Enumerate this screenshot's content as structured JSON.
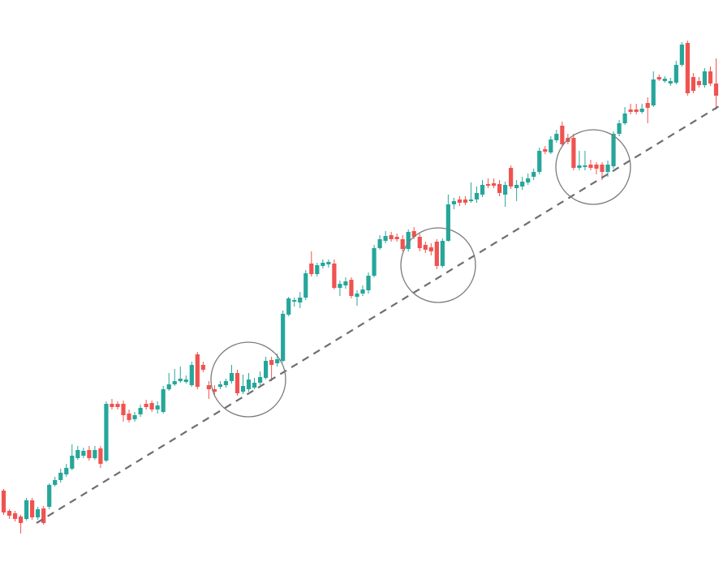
{
  "chart_data": {
    "type": "candlestick",
    "up_color": "#26a69a",
    "down_color": "#ef5350",
    "ylim": [
      7,
      700
    ],
    "open": [
      95,
      70,
      67,
      63,
      60,
      83,
      62,
      73,
      75,
      102,
      108,
      115,
      122,
      135,
      138,
      145,
      135,
      147,
      132,
      202,
      202,
      202,
      190,
      183,
      189,
      202,
      203,
      195,
      192,
      220,
      226,
      230,
      229,
      225,
      263,
      250,
      225,
      220,
      223,
      225,
      230,
      240,
      217,
      220,
      222,
      228,
      234,
      256,
      252,
      255,
      312,
      328,
      327,
      333,
      375,
      362,
      372,
      374,
      375,
      345,
      348,
      355,
      334,
      338,
      342,
      360,
      394,
      403,
      410,
      408,
      405,
      393,
      415,
      408,
      398,
      395,
      402,
      372,
      403,
      448,
      454,
      454,
      452,
      454,
      460,
      473,
      474,
      473,
      460,
      493,
      468,
      470,
      475,
      482,
      488,
      516,
      512,
      527,
      545,
      530,
      530,
      493,
      494,
      497,
      497,
      497,
      488,
      495,
      535,
      548,
      565,
      565,
      562,
      573,
      570,
      605,
      600,
      597,
      598,
      620,
      647,
      605,
      600,
      595,
      612,
      597
    ],
    "high": [
      97,
      72,
      70,
      65,
      86,
      86,
      75,
      76,
      104,
      112,
      122,
      128,
      152,
      150,
      148,
      150,
      150,
      150,
      205,
      208,
      205,
      206,
      195,
      192,
      201,
      207,
      206,
      205,
      224,
      240,
      245,
      248,
      237,
      254,
      266,
      254,
      230,
      225,
      230,
      233,
      250,
      244,
      238,
      240,
      234,
      242,
      260,
      260,
      264,
      317,
      334,
      333,
      340,
      367,
      390,
      376,
      380,
      380,
      380,
      354,
      358,
      358,
      342,
      348,
      364,
      398,
      410,
      415,
      414,
      412,
      410,
      417,
      420,
      412,
      402,
      400,
      405,
      406,
      460,
      456,
      458,
      458,
      475,
      470,
      478,
      480,
      480,
      478,
      476,
      496,
      478,
      482,
      486,
      492,
      518,
      520,
      532,
      540,
      550,
      535,
      535,
      514,
      514,
      503,
      500,
      500,
      502,
      538,
      552,
      568,
      572,
      572,
      572,
      580,
      612,
      608,
      606,
      604,
      625,
      648,
      650,
      610,
      605,
      616,
      618,
      628
    ],
    "low": [
      65,
      60,
      57,
      42,
      58,
      59,
      59,
      53,
      72,
      100,
      105,
      112,
      120,
      133,
      135,
      132,
      133,
      123,
      130,
      195,
      195,
      180,
      179,
      180,
      186,
      195,
      192,
      190,
      190,
      218,
      224,
      228,
      227,
      223,
      220,
      241,
      208,
      213,
      220,
      222,
      227,
      212,
      214,
      217,
      220,
      225,
      232,
      230,
      248,
      253,
      310,
      322,
      320,
      330,
      359,
      359,
      369,
      370,
      343,
      335,
      344,
      332,
      323,
      335,
      338,
      358,
      392,
      400,
      402,
      402,
      390,
      390,
      405,
      390,
      388,
      385,
      368,
      370,
      402,
      442,
      446,
      447,
      450,
      450,
      457,
      468,
      468,
      458,
      445,
      467,
      452,
      466,
      472,
      478,
      485,
      510,
      510,
      524,
      519,
      522,
      490,
      490,
      490,
      490,
      485,
      478,
      482,
      492,
      532,
      546,
      559,
      559,
      560,
      548,
      568,
      600,
      598,
      594,
      596,
      618,
      582,
      585,
      592,
      592,
      594,
      565
    ],
    "close": [
      68,
      64,
      60,
      55,
      83,
      62,
      72,
      55,
      102,
      108,
      117,
      123,
      138,
      145,
      144,
      135,
      145,
      128,
      202,
      198,
      198,
      188,
      182,
      188,
      197,
      198,
      195,
      200,
      220,
      226,
      230,
      233,
      232,
      250,
      223,
      244,
      220,
      217,
      226,
      230,
      240,
      215,
      224,
      232,
      228,
      235,
      255,
      250,
      257,
      313,
      332,
      330,
      333,
      363,
      362,
      373,
      376,
      377,
      345,
      350,
      353,
      335,
      338,
      343,
      360,
      394,
      405,
      409,
      405,
      405,
      393,
      414,
      408,
      394,
      392,
      390,
      372,
      403,
      448,
      452,
      450,
      450,
      454,
      462,
      472,
      471,
      471,
      462,
      472,
      470,
      472,
      476,
      480,
      488,
      514,
      513,
      528,
      535,
      522,
      525,
      493,
      496,
      496,
      493,
      492,
      488,
      497,
      535,
      548,
      560,
      562,
      562,
      566,
      567,
      602,
      602,
      603,
      600,
      620,
      645,
      585,
      588,
      595,
      612,
      597,
      582
    ]
  }
}
